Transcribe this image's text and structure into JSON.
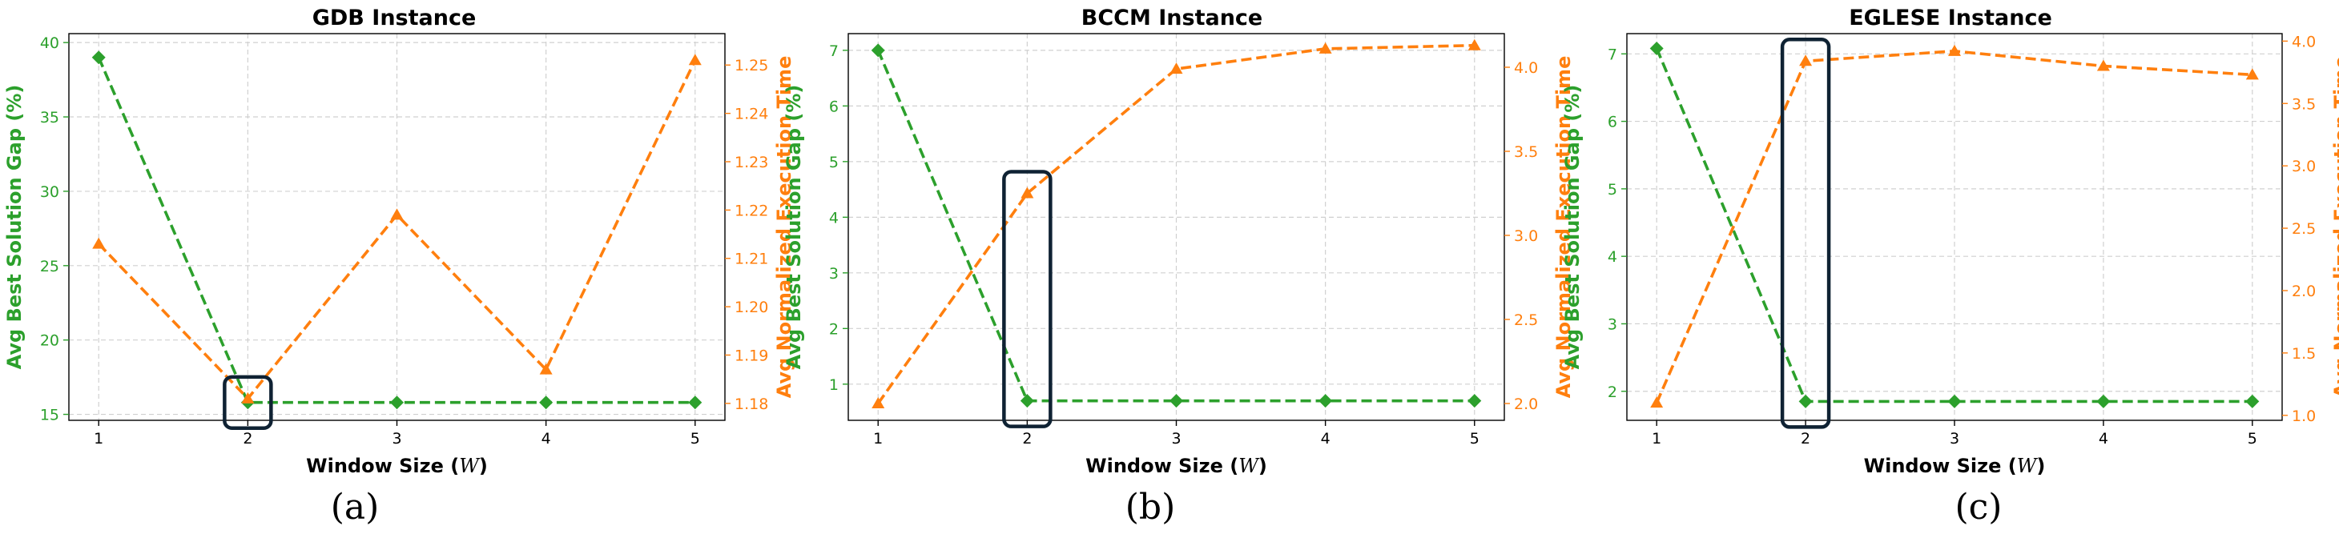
{
  "colors": {
    "gap": "#2ca02c",
    "time": "#ff7f0e",
    "highlight": "#0f2233"
  },
  "chart_data": [
    {
      "type": "line",
      "title": "GDB Instance",
      "panel_label": "(a)",
      "xlabel": "Window Size (W)",
      "ylabel_left": "Avg Best Solution Gap (%)",
      "ylabel_right": "Avg Normalized Execution Time",
      "x": [
        1,
        2,
        3,
        4,
        5
      ],
      "xlim": [
        0.8,
        5.2
      ],
      "left_axis": {
        "lim": [
          14.6,
          40.6
        ],
        "ticks": [
          15,
          20,
          25,
          30,
          35,
          40
        ],
        "tick_labels": [
          "15",
          "20",
          "25",
          "30",
          "35",
          "40"
        ]
      },
      "right_axis": {
        "lim": [
          1.1765,
          1.2565
        ],
        "ticks": [
          1.18,
          1.19,
          1.2,
          1.21,
          1.22,
          1.23,
          1.24,
          1.25
        ],
        "tick_labels": [
          "1.18",
          "1.19",
          "1.20",
          "1.21",
          "1.22",
          "1.23",
          "1.24",
          "1.25"
        ]
      },
      "series": [
        {
          "axis": "left",
          "marker": "diamond",
          "values": [
            39.0,
            15.8,
            15.8,
            15.8,
            15.8
          ]
        },
        {
          "axis": "right",
          "marker": "triangle",
          "values": [
            1.213,
            1.181,
            1.219,
            1.187,
            1.251
          ]
        }
      ],
      "highlight_x": 2
    },
    {
      "type": "line",
      "title": "BCCM Instance",
      "panel_label": "(b)",
      "xlabel": "Window Size (W)",
      "ylabel_left": "Avg Best Solution Gap (%)",
      "ylabel_right": "Avg Normalized Execution Time",
      "x": [
        1,
        2,
        3,
        4,
        5
      ],
      "xlim": [
        0.8,
        5.2
      ],
      "left_axis": {
        "lim": [
          0.35,
          7.3
        ],
        "ticks": [
          1,
          2,
          3,
          4,
          5,
          6,
          7
        ],
        "tick_labels": [
          "1",
          "2",
          "3",
          "4",
          "5",
          "6",
          "7"
        ]
      },
      "right_axis": {
        "lim": [
          1.9,
          4.2
        ],
        "ticks": [
          2.0,
          2.5,
          3.0,
          3.5,
          4.0
        ],
        "tick_labels": [
          "2.0",
          "2.5",
          "3.0",
          "3.5",
          "4.0"
        ]
      },
      "series": [
        {
          "axis": "left",
          "marker": "diamond",
          "values": [
            7.0,
            0.7,
            0.7,
            0.7,
            0.7
          ]
        },
        {
          "axis": "right",
          "marker": "triangle",
          "values": [
            2.0,
            3.25,
            3.99,
            4.11,
            4.13
          ]
        }
      ],
      "highlight_x": 2
    },
    {
      "type": "line",
      "title": "EGLESE Instance",
      "panel_label": "(c)",
      "xlabel": "Window Size (W)",
      "ylabel_left": "Avg Best Solution Gap (%)",
      "ylabel_right": "Avg Normalized Execution Time",
      "x": [
        1,
        2,
        3,
        4,
        5
      ],
      "xlim": [
        0.8,
        5.2
      ],
      "left_axis": {
        "lim": [
          1.57,
          7.3
        ],
        "ticks": [
          2,
          3,
          4,
          5,
          6,
          7
        ],
        "tick_labels": [
          "2",
          "3",
          "4",
          "5",
          "6",
          "7"
        ]
      },
      "right_axis": {
        "lim": [
          0.96,
          4.06
        ],
        "ticks": [
          1.0,
          1.5,
          2.0,
          2.5,
          3.0,
          3.5,
          4.0
        ],
        "tick_labels": [
          "1.0",
          "1.5",
          "2.0",
          "2.5",
          "3.0",
          "3.5",
          "4.0"
        ]
      },
      "series": [
        {
          "axis": "left",
          "marker": "diamond",
          "values": [
            7.08,
            1.85,
            1.85,
            1.85,
            1.85
          ]
        },
        {
          "axis": "right",
          "marker": "triangle",
          "values": [
            1.1,
            3.84,
            3.92,
            3.8,
            3.73
          ]
        }
      ],
      "highlight_x": 2
    }
  ]
}
